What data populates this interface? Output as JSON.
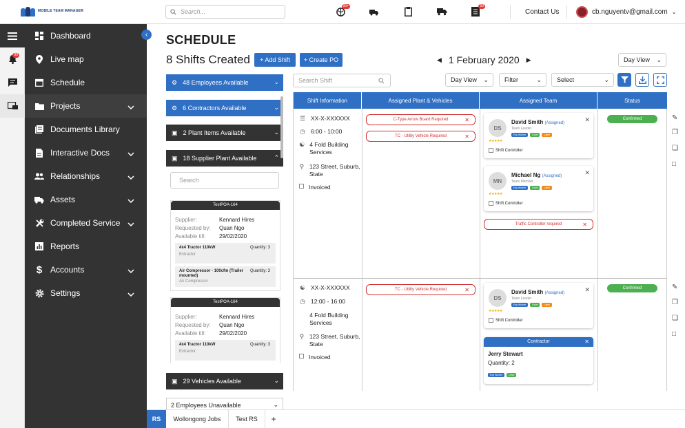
{
  "app": {
    "logo_text": "MOBILE TEAM MANAGER",
    "search_placeholder": "Search...",
    "contact": "Contact Us",
    "user_email": "cb.nguyentv@gmail.com",
    "badges": {
      "globe": "99+",
      "notebook": "99"
    },
    "notification_badge": "99"
  },
  "sidebar": {
    "items": [
      {
        "label": "Dashboard",
        "icon": "dashboard-icon"
      },
      {
        "label": "Live map",
        "icon": "pin-icon"
      },
      {
        "label": "Schedule",
        "icon": "calendar-icon"
      },
      {
        "label": "Projects",
        "icon": "folder-icon"
      },
      {
        "label": "Documents Library",
        "icon": "library-icon"
      },
      {
        "label": "Interactive Docs",
        "icon": "doc-icon"
      },
      {
        "label": "Relationships",
        "icon": "people-icon"
      },
      {
        "label": "Assets",
        "icon": "truck-icon"
      },
      {
        "label": "Completed Service",
        "icon": "wrench-icon"
      },
      {
        "label": "Reports",
        "icon": "chart-icon"
      },
      {
        "label": "Accounts",
        "icon": "dollar-icon"
      },
      {
        "label": "Settings",
        "icon": "gear-icon"
      }
    ]
  },
  "page": {
    "title": "SCHEDULE",
    "shift_count": "8 Shifts Created",
    "add_shift": "+ Add Shift",
    "create_po": "+ Create PO",
    "date": "1 February 2020",
    "view": "Day View"
  },
  "left_panel": {
    "accordions": [
      "48 Employees Available",
      "6 Contractors Available",
      "2 Plant Items Available",
      "18 Supplier Plant Available"
    ],
    "search_placeholder": "Search",
    "cards": [
      {
        "title": "TestPOA-164",
        "supplier_k": "Supplier:",
        "supplier": "Kennard Hires",
        "req_k": "Requested by:",
        "requested": "Quan Ngo",
        "avail_k": "Available till:",
        "available": "29/02/2020",
        "items": [
          {
            "name": "4x4 Tractor 110kW",
            "qty": "Quantity: 3",
            "type": "Extractor"
          },
          {
            "name": "Air Compressor - 100cfm (Trailer mounted)",
            "qty": "Quantity: 3",
            "type": "Air Compressor"
          }
        ]
      },
      {
        "title": "TestPOA-164",
        "supplier_k": "Supplier:",
        "supplier": "Kennard Hires",
        "req_k": "Requested by:",
        "requested": "Quan Ngo",
        "avail_k": "Available till:",
        "available": "29/02/2020",
        "items": [
          {
            "name": "4x4 Tractor 110kW",
            "qty": "Quantity: 3",
            "type": "Extractor"
          }
        ]
      }
    ],
    "vehicles": "29 Vehicles Available",
    "unavailable": "2 Employees Unavailable"
  },
  "filters": {
    "search_placeholder": "Search Shift",
    "view": "Day View",
    "filter": "Filter",
    "select": "Select"
  },
  "grid": {
    "headers": [
      "Shift Information",
      "Assigned Plant & Vehicles",
      "Assigned Team",
      "Status"
    ]
  },
  "shifts": [
    {
      "code": "XX-X-XXXXXX",
      "time": "6:00 - 10:00",
      "location": "4 Fold Building Services",
      "address": "123 Street, Suburb, State",
      "invoiced": "Invoiced",
      "requirements": [
        "C-Type Arrow Board Required",
        "TC - Utility Vehicle Required"
      ],
      "team": [
        {
          "initials": "DS",
          "name": "David Smith",
          "assigned": "(Assigned)",
          "role": "Team Leader",
          "controller": "Shift Controller"
        },
        {
          "initials": "MN",
          "name": "Michael Ng",
          "assigned": "(Assigned)",
          "role": "Team Member",
          "controller": "Shift Controller"
        }
      ],
      "team_req": "Traffic Controller required",
      "status": "Confirmed"
    },
    {
      "code": "XX-X-XXXXXX",
      "time": "12:00 - 16:00",
      "location": "4 Fold Building Services",
      "address": "123 Street, Suburb, State",
      "invoiced": "Invoiced",
      "requirements": [
        "TC - Utility Vehicle Required"
      ],
      "team": [
        {
          "initials": "DS",
          "name": "David Smith",
          "assigned": "(Assigned)",
          "role": "Team Leader",
          "controller": "Shift Controller"
        }
      ],
      "contractor": {
        "header": "Contractor",
        "name": "Jerry Stewart",
        "qty": "Quantity: 2"
      },
      "status": "Confirmed"
    }
  ],
  "chips": [
    "Exp Worker",
    "Drive",
    "Label"
  ],
  "bottom_tabs": {
    "badge": "RS",
    "tabs": [
      "Wollongong Jobs",
      "Test RS"
    ],
    "add": "+"
  }
}
